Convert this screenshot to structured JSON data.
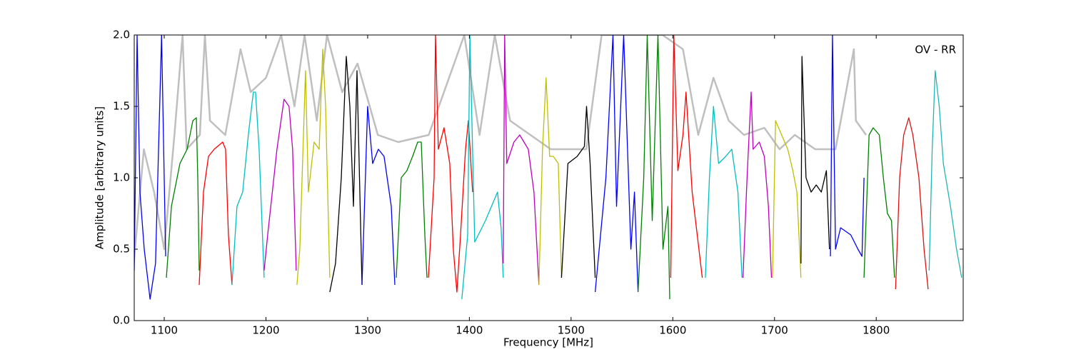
{
  "chart_data": {
    "type": "line",
    "annotation": "OV - RR",
    "xlabel": "Frequency [MHz]",
    "ylabel": "Amplitude [arbitrary units]",
    "xlim": [
      1070.5,
      1885.5
    ],
    "ylim": [
      0,
      2
    ],
    "xticks": [
      1100,
      1200,
      1300,
      1400,
      1500,
      1600,
      1700,
      1800
    ],
    "yticks": [
      {
        "value": 0,
        "label": "0.0"
      },
      0.5,
      {
        "value": 1,
        "label": "1.0"
      },
      1.5,
      {
        "value": 2,
        "label": "2.0"
      }
    ],
    "series": [
      {
        "color": "#bfbfbf",
        "x": [
          1070,
          1080,
          1090,
          1100,
          1110,
          1118,
          1122,
          1135,
          1140,
          1145,
          1160,
          1175,
          1185,
          1200,
          1215,
          1228,
          1238,
          1250,
          1260,
          1275,
          1290,
          1310,
          1330,
          1360,
          1375,
          1395,
          1410,
          1425,
          1440,
          1460,
          1480,
          1500,
          1515,
          1530,
          1550,
          1570,
          1590,
          1610,
          1625,
          1640,
          1655,
          1670,
          1690,
          1705,
          1720,
          1740,
          1760,
          1778,
          1780,
          1790
        ],
        "values": [
          0.4,
          1.2,
          0.9,
          0.5,
          1.3,
          2.0,
          1.2,
          1.3,
          2.0,
          1.4,
          1.3,
          1.9,
          1.6,
          1.7,
          2.0,
          1.5,
          2.0,
          1.4,
          2.0,
          1.6,
          1.8,
          1.3,
          1.25,
          1.3,
          1.6,
          2.0,
          1.3,
          2.0,
          1.4,
          1.3,
          1.2,
          1.2,
          1.2,
          2.0,
          2.0,
          2.0,
          2.0,
          1.9,
          1.3,
          1.7,
          1.4,
          1.3,
          1.35,
          1.2,
          1.3,
          1.2,
          1.2,
          1.9,
          1.4,
          1.3
        ]
      },
      {
        "color": "#0000ff",
        "x": [
          1070.5,
          1073.3,
          1076.1,
          1080.3,
          1086.1,
          1091.4,
          1097.4,
          1101.4
        ],
        "values": [
          0.35,
          2.0,
          0.9,
          0.5,
          0.15,
          0.4,
          2.0,
          0.45
        ]
      },
      {
        "color": "#008000",
        "x": [
          1102.1,
          1107.1,
          1115.4,
          1122.5,
          1128.1,
          1131.6,
          1133.0,
          1134.4
        ],
        "values": [
          0.3,
          0.8,
          1.1,
          1.2,
          1.4,
          1.42,
          1.0,
          0.35
        ]
      },
      {
        "color": "#ff0000",
        "x": [
          1134.4,
          1138.6,
          1143.5,
          1149.1,
          1157.5,
          1160.3,
          1163.1,
          1166.6
        ],
        "values": [
          0.25,
          0.9,
          1.15,
          1.2,
          1.25,
          1.2,
          0.6,
          0.25
        ]
      },
      {
        "color": "#00bfbf",
        "x": [
          1166.6,
          1171.5,
          1177.1,
          1182.7,
          1187.6,
          1189.8,
          1193.3,
          1198.2
        ],
        "values": [
          0.25,
          0.8,
          0.9,
          1.3,
          1.6,
          1.6,
          1.2,
          0.3
        ]
      },
      {
        "color": "#bf00bf",
        "x": [
          1198.2,
          1201.7,
          1210.8,
          1217.8,
          1222.7,
          1226.2,
          1229.8
        ],
        "values": [
          0.35,
          0.6,
          1.2,
          1.55,
          1.5,
          1.2,
          0.35
        ]
      },
      {
        "color": "#bfbf00",
        "x": [
          1230.5,
          1233.3,
          1238.9,
          1241.7,
          1247.3,
          1252.3,
          1255.8,
          1258.6,
          1262.8
        ],
        "values": [
          0.25,
          0.5,
          1.75,
          0.9,
          1.25,
          1.2,
          1.9,
          1.5,
          0.3
        ]
      },
      {
        "color": "#000000",
        "x": [
          1262.8,
          1268.4,
          1274.1,
          1279.0,
          1282.5,
          1286.0,
          1289.5,
          1294.4
        ],
        "values": [
          0.2,
          0.4,
          1.0,
          1.85,
          1.5,
          0.8,
          1.75,
          0.25
        ]
      },
      {
        "color": "#0000ff",
        "x": [
          1294.4,
          1300.0,
          1304.9,
          1310.5,
          1316.1,
          1323.2,
          1326.7
        ],
        "values": [
          0.25,
          1.5,
          1.1,
          1.2,
          1.15,
          0.8,
          0.25
        ]
      },
      {
        "color": "#008000",
        "x": [
          1328.1,
          1333.0,
          1338.6,
          1344.2,
          1349.2,
          1352.7,
          1356.2,
          1358.3
        ],
        "values": [
          0.3,
          1.0,
          1.05,
          1.15,
          1.25,
          1.25,
          0.6,
          0.3
        ]
      },
      {
        "color": "#ff0000",
        "x": [
          1359.7,
          1365.3,
          1366.7,
          1369.5,
          1375.1,
          1380.7,
          1384.2,
          1387.7,
          1391.3,
          1396.2,
          1399.0,
          1403.2
        ],
        "values": [
          0.3,
          1.0,
          2.0,
          1.2,
          1.35,
          1.1,
          0.5,
          0.2,
          0.6,
          1.2,
          1.4,
          0.9
        ]
      },
      {
        "color": "#00bfbf",
        "x": [
          1392.6,
          1398.3,
          1400.5,
          1405.3,
          1415.8,
          1427.7,
          1431.2,
          1433.3
        ],
        "values": [
          0.15,
          0.6,
          2.0,
          0.55,
          0.7,
          0.9,
          0.65,
          0.3
        ]
      },
      {
        "color": "#bf00bf",
        "x": [
          1433.3,
          1434.7,
          1436.8,
          1443.8,
          1449.5,
          1457.9,
          1463.5,
          1468.4
        ],
        "values": [
          0.4,
          2.0,
          1.1,
          1.25,
          1.3,
          1.2,
          0.9,
          0.25
        ]
      },
      {
        "color": "#bfbf00",
        "x": [
          1468.4,
          1471.9,
          1475.4,
          1478.9,
          1482.5,
          1487.4,
          1490.6
        ],
        "values": [
          0.25,
          1.2,
          1.7,
          1.15,
          1.15,
          1.1,
          0.3
        ]
      },
      {
        "color": "#000000",
        "x": [
          1490.6,
          1496.9,
          1506.0,
          1513.1,
          1515.2,
          1518.7,
          1523.7
        ],
        "values": [
          0.3,
          1.1,
          1.15,
          1.22,
          1.5,
          1.1,
          0.3
        ]
      },
      {
        "color": "#0000ff",
        "x": [
          1523.7,
          1534.2,
          1541.2,
          1544.7,
          1551.7,
          1558.8,
          1562.3,
          1565.8
        ],
        "values": [
          0.2,
          1.0,
          2.0,
          0.8,
          2.0,
          0.5,
          0.9,
          0.2
        ]
      },
      {
        "color": "#008000",
        "x": [
          1565.8,
          1571.4,
          1574.9,
          1579.8,
          1585.4,
          1590.3,
          1595.2,
          1597.0
        ],
        "values": [
          0.2,
          1.0,
          2.0,
          0.7,
          2.0,
          0.5,
          0.8,
          0.15
        ]
      },
      {
        "color": "#ff0000",
        "x": [
          1598,
          1601,
          1605,
          1610,
          1613,
          1619,
          1629
        ],
        "values": [
          0.3,
          2.0,
          1.05,
          1.3,
          1.6,
          0.9,
          0.3
        ]
      },
      {
        "color": "#00bfbf",
        "x": [
          1632,
          1636,
          1640,
          1645,
          1652,
          1658,
          1664,
          1668
        ],
        "values": [
          0.3,
          1.0,
          1.5,
          1.1,
          1.15,
          1.2,
          0.9,
          0.3
        ]
      },
      {
        "color": "#bf00bf",
        "x": [
          1669,
          1673,
          1677,
          1679,
          1685,
          1690,
          1694,
          1697
        ],
        "values": [
          0.3,
          1.0,
          1.6,
          1.2,
          1.25,
          1.15,
          0.8,
          0.3
        ]
      },
      {
        "color": "#bfbf00",
        "x": [
          1698,
          1701,
          1707,
          1713,
          1718,
          1722,
          1726
        ],
        "values": [
          0.3,
          1.4,
          1.3,
          1.2,
          1.05,
          0.9,
          0.3
        ]
      },
      {
        "color": "#000000",
        "x": [
          1726,
          1727,
          1731,
          1736,
          1741,
          1746,
          1751,
          1754
        ],
        "values": [
          0.4,
          1.85,
          1.0,
          0.9,
          0.95,
          0.9,
          1.05,
          0.5
        ]
      },
      {
        "color": "#0000ff",
        "x": [
          1755,
          1757,
          1760,
          1765,
          1775,
          1782,
          1786,
          1788
        ],
        "values": [
          0.45,
          2.0,
          0.5,
          0.65,
          0.6,
          0.5,
          0.45,
          1.0
        ]
      },
      {
        "color": "#008000",
        "x": [
          1788,
          1793,
          1797,
          1803,
          1807,
          1811,
          1815,
          1818
        ],
        "values": [
          0.3,
          1.3,
          1.35,
          1.3,
          1.0,
          0.75,
          0.7,
          0.3
        ]
      },
      {
        "color": "#dd1111",
        "x": [
          1819,
          1823,
          1827,
          1832,
          1836,
          1842,
          1847,
          1851
        ],
        "values": [
          0.22,
          1.0,
          1.3,
          1.42,
          1.3,
          1.0,
          0.5,
          0.22
        ]
      },
      {
        "color": "#22b5b5",
        "x": [
          1852,
          1855,
          1858,
          1862,
          1866,
          1873,
          1879,
          1884
        ],
        "values": [
          0.35,
          1.2,
          1.75,
          1.5,
          1.1,
          0.8,
          0.5,
          0.3
        ]
      }
    ]
  }
}
